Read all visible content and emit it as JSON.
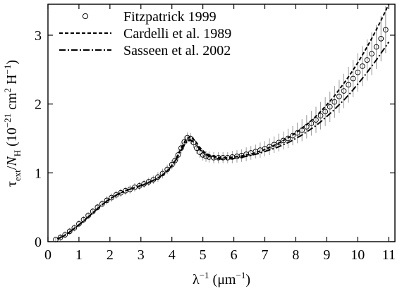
{
  "chart_data": {
    "type": "line",
    "title": "",
    "xlabel": {
      "main": "λ",
      "sup": "−1",
      "unit_open": "(μm",
      "unit_sup": "−1",
      "unit_close": ")"
    },
    "ylabel": {
      "tau": "τ",
      "tau_sub": "ext",
      "slash": "/",
      "N": "N",
      "N_sub": "H",
      "unit_open": "(10",
      "unit_exp": "−21",
      "unit_mid": "cm",
      "unit_sup2": "2",
      "unit_H": "H",
      "unit_Hsup": "−1",
      "unit_close": ")"
    },
    "xlim": [
      0,
      11.2
    ],
    "ylim": [
      0,
      3.45
    ],
    "xticks": [
      "0",
      "1",
      "2",
      "3",
      "4",
      "5",
      "6",
      "7",
      "8",
      "9",
      "10",
      "11"
    ],
    "yticks": [
      "0",
      "1",
      "2",
      "3"
    ],
    "grid": false,
    "legend_position": "top-left",
    "legend": [
      "Fitzpatrick 1999",
      "Cardelli et al. 1989",
      "Sasseen et al. 2002"
    ],
    "series": [
      {
        "name": "Fitzpatrick 1999",
        "style": "open-circles-with-gray-error-bars",
        "color": "#000000",
        "error_color": "#9a9a9a",
        "x": [
          0.25,
          0.4,
          0.55,
          0.7,
          0.85,
          1.0,
          1.15,
          1.3,
          1.45,
          1.6,
          1.75,
          1.9,
          2.05,
          2.2,
          2.35,
          2.5,
          2.65,
          2.8,
          2.95,
          3.1,
          3.25,
          3.4,
          3.55,
          3.7,
          3.85,
          4.0,
          4.1,
          4.2,
          4.3,
          4.4,
          4.5,
          4.6,
          4.7,
          4.8,
          4.9,
          5.0,
          5.1,
          5.2,
          5.35,
          5.5,
          5.65,
          5.8,
          5.95,
          6.1,
          6.25,
          6.4,
          6.55,
          6.7,
          6.85,
          7.0,
          7.15,
          7.3,
          7.45,
          7.6,
          7.75,
          7.9,
          8.05,
          8.2,
          8.35,
          8.5,
          8.65,
          8.8,
          8.95,
          9.1,
          9.25,
          9.4,
          9.55,
          9.7,
          9.85,
          10.0,
          10.15,
          10.3,
          10.45,
          10.6,
          10.75,
          10.9
        ],
        "y": [
          0.03,
          0.06,
          0.1,
          0.15,
          0.2,
          0.26,
          0.32,
          0.38,
          0.44,
          0.5,
          0.55,
          0.6,
          0.64,
          0.68,
          0.71,
          0.74,
          0.76,
          0.79,
          0.81,
          0.84,
          0.87,
          0.9,
          0.94,
          0.99,
          1.05,
          1.12,
          1.18,
          1.26,
          1.36,
          1.45,
          1.51,
          1.5,
          1.44,
          1.36,
          1.3,
          1.26,
          1.24,
          1.23,
          1.22,
          1.22,
          1.22,
          1.22,
          1.23,
          1.24,
          1.25,
          1.27,
          1.29,
          1.31,
          1.33,
          1.35,
          1.38,
          1.41,
          1.44,
          1.47,
          1.5,
          1.54,
          1.58,
          1.62,
          1.67,
          1.72,
          1.77,
          1.83,
          1.89,
          1.96,
          2.03,
          2.11,
          2.19,
          2.28,
          2.37,
          2.46,
          2.55,
          2.64,
          2.73,
          2.83,
          2.95,
          3.08
        ],
        "yerr": [
          0.04,
          0.05,
          0.05,
          0.05,
          0.05,
          0.05,
          0.05,
          0.05,
          0.05,
          0.05,
          0.05,
          0.06,
          0.06,
          0.06,
          0.06,
          0.06,
          0.06,
          0.06,
          0.06,
          0.06,
          0.06,
          0.06,
          0.07,
          0.07,
          0.07,
          0.07,
          0.07,
          0.08,
          0.08,
          0.08,
          0.08,
          0.08,
          0.08,
          0.08,
          0.08,
          0.08,
          0.08,
          0.08,
          0.08,
          0.08,
          0.08,
          0.08,
          0.09,
          0.09,
          0.09,
          0.1,
          0.1,
          0.1,
          0.11,
          0.11,
          0.12,
          0.12,
          0.13,
          0.13,
          0.14,
          0.14,
          0.15,
          0.16,
          0.17,
          0.18,
          0.19,
          0.2,
          0.21,
          0.22,
          0.23,
          0.24,
          0.25,
          0.26,
          0.27,
          0.28,
          0.29,
          0.3,
          0.31,
          0.32,
          0.33,
          0.34
        ]
      },
      {
        "name": "Cardelli et al. 1989",
        "style": "dashed",
        "color": "#000000",
        "x": [
          0.3,
          0.5,
          0.7,
          0.9,
          1.1,
          1.3,
          1.5,
          1.7,
          1.9,
          2.1,
          2.3,
          2.5,
          2.7,
          2.9,
          3.1,
          3.3,
          3.5,
          3.7,
          3.9,
          4.1,
          4.3,
          4.45,
          4.6,
          4.75,
          4.9,
          5.05,
          5.2,
          5.4,
          5.6,
          5.8,
          6.0,
          6.2,
          6.4,
          6.6,
          6.8,
          7.0,
          7.2,
          7.4,
          7.6,
          7.8,
          8.0,
          8.2,
          8.4,
          8.6,
          8.8,
          9.0,
          9.2,
          9.4,
          9.6,
          9.8,
          10.0,
          10.2,
          10.4,
          10.6,
          10.8,
          11.0
        ],
        "y": [
          0.04,
          0.08,
          0.14,
          0.21,
          0.28,
          0.36,
          0.44,
          0.52,
          0.59,
          0.65,
          0.7,
          0.74,
          0.77,
          0.8,
          0.83,
          0.87,
          0.91,
          0.97,
          1.05,
          1.17,
          1.36,
          1.48,
          1.53,
          1.47,
          1.37,
          1.3,
          1.26,
          1.23,
          1.22,
          1.22,
          1.23,
          1.24,
          1.26,
          1.28,
          1.31,
          1.34,
          1.38,
          1.42,
          1.47,
          1.52,
          1.58,
          1.65,
          1.72,
          1.8,
          1.89,
          1.99,
          2.09,
          2.21,
          2.33,
          2.46,
          2.6,
          2.75,
          2.91,
          3.08,
          3.26,
          3.45
        ]
      },
      {
        "name": "Sasseen et al. 2002",
        "style": "dash-dot",
        "color": "#000000",
        "x": [
          0.3,
          0.5,
          0.7,
          0.9,
          1.1,
          1.3,
          1.5,
          1.7,
          1.9,
          2.1,
          2.3,
          2.5,
          2.7,
          2.9,
          3.1,
          3.3,
          3.5,
          3.7,
          3.9,
          4.1,
          4.3,
          4.45,
          4.6,
          4.75,
          4.9,
          5.05,
          5.2,
          5.4,
          5.6,
          5.8,
          6.0,
          6.2,
          6.4,
          6.6,
          6.8,
          7.0,
          7.2,
          7.4,
          7.6,
          7.8,
          8.0,
          8.2,
          8.4,
          8.6,
          8.8,
          9.0,
          9.2,
          9.4,
          9.6,
          9.8,
          10.0,
          10.2,
          10.4,
          10.6,
          10.8,
          11.0
        ],
        "y": [
          0.04,
          0.08,
          0.14,
          0.21,
          0.28,
          0.36,
          0.44,
          0.52,
          0.59,
          0.65,
          0.7,
          0.74,
          0.77,
          0.8,
          0.83,
          0.87,
          0.91,
          0.97,
          1.05,
          1.16,
          1.33,
          1.44,
          1.48,
          1.43,
          1.34,
          1.28,
          1.24,
          1.21,
          1.2,
          1.2,
          1.21,
          1.22,
          1.24,
          1.26,
          1.28,
          1.31,
          1.34,
          1.37,
          1.41,
          1.45,
          1.5,
          1.55,
          1.61,
          1.67,
          1.74,
          1.82,
          1.9,
          1.99,
          2.08,
          2.18,
          2.29,
          2.4,
          2.52,
          2.64,
          2.77,
          2.9
        ]
      }
    ]
  }
}
